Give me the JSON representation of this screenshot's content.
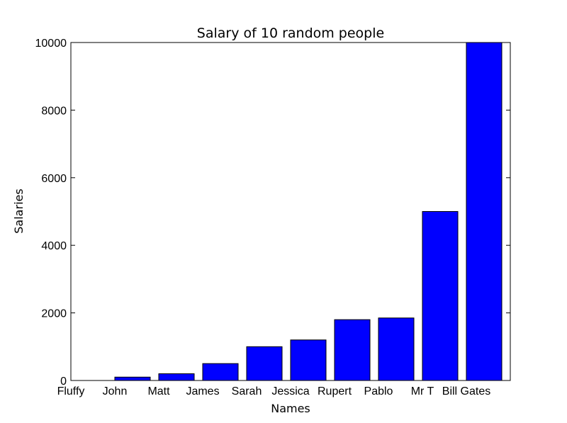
{
  "chart_data": {
    "type": "bar",
    "title": "Salary of 10 random people",
    "xlabel": "Names",
    "ylabel": "Salaries",
    "categories": [
      "Fluffy",
      "John",
      "Matt",
      "James",
      "Sarah",
      "Jessica",
      "Rupert",
      "Pablo",
      "Mr T",
      "Bill Gates"
    ],
    "values": [
      0,
      100,
      200,
      500,
      1000,
      1200,
      1800,
      1850,
      5000,
      10000
    ],
    "ylim": [
      0,
      10000
    ],
    "yticks": [
      "0",
      "2000",
      "4000",
      "6000",
      "8000",
      "10000"
    ],
    "grid": false,
    "bar_color": "#0000ff"
  }
}
